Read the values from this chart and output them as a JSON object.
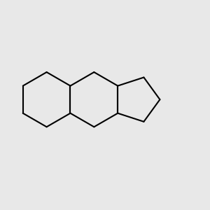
{
  "bg_color": "#e8e8e8",
  "bond_color": "#000000",
  "o_color": "#ff0000",
  "lw": 1.5,
  "lw2": 1.0,
  "figsize": [
    3.0,
    3.0
  ],
  "dpi": 100
}
